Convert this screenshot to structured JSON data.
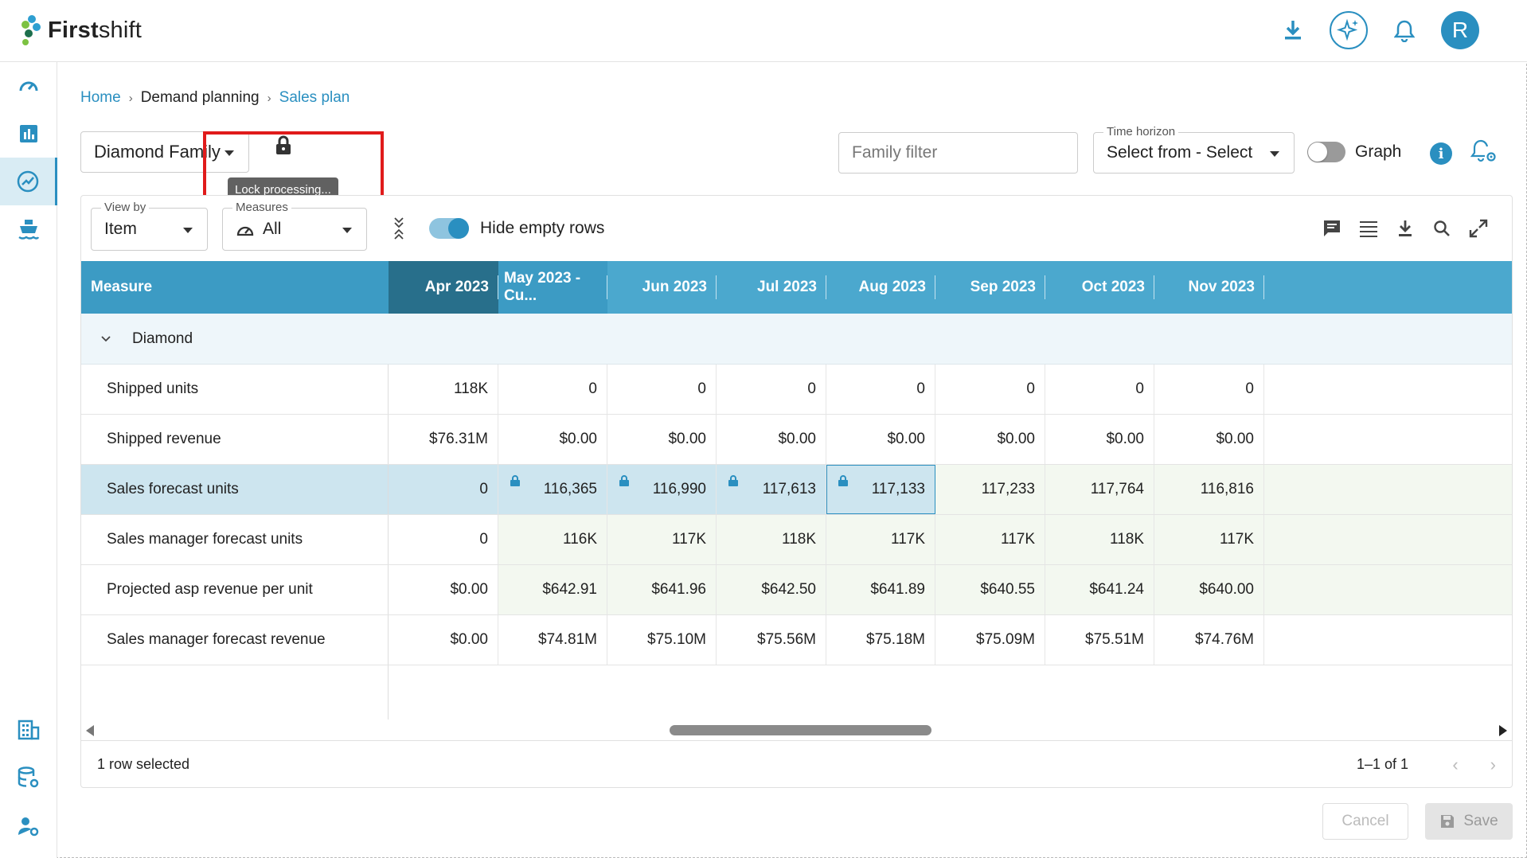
{
  "app": {
    "name_bold": "First",
    "name_light": "shift",
    "user_initial": "R"
  },
  "breadcrumb": {
    "home": "Home",
    "demand": "Demand planning",
    "current": "Sales plan"
  },
  "controls": {
    "family": "Diamond Family",
    "lock_tooltip": "Lock processing...",
    "family_filter_placeholder": "Family filter",
    "time_horizon_label": "Time horizon",
    "time_horizon_value": "Select from - Select",
    "graph_label": "Graph",
    "graph_on": false
  },
  "grid_toolbar": {
    "view_by_label": "View by",
    "view_by_value": "Item",
    "measures_label": "Measures",
    "measures_value": "All",
    "hide_empty_label": "Hide empty rows",
    "hide_empty_on": true
  },
  "table": {
    "measure_header": "Measure",
    "columns": [
      "Apr 2023",
      "May 2023 - Cu...",
      "Jun 2023",
      "Jul 2023",
      "Aug 2023",
      "Sep 2023",
      "Oct 2023",
      "Nov 2023"
    ],
    "group": "Diamond",
    "rows": [
      {
        "label": "Shipped units",
        "values": [
          "118K",
          "0",
          "0",
          "0",
          "0",
          "0",
          "0",
          "0"
        ]
      },
      {
        "label": "Shipped revenue",
        "values": [
          "$76.31M",
          "$0.00",
          "$0.00",
          "$0.00",
          "$0.00",
          "$0.00",
          "$0.00",
          "$0.00"
        ]
      },
      {
        "label": "Sales forecast units",
        "values": [
          "0",
          "116,365",
          "116,990",
          "117,613",
          "117,133",
          "117,233",
          "117,764",
          "116,816"
        ]
      },
      {
        "label": "Sales manager forecast units",
        "values": [
          "0",
          "116K",
          "117K",
          "118K",
          "117K",
          "117K",
          "118K",
          "117K"
        ]
      },
      {
        "label": "Projected asp revenue per unit",
        "values": [
          "$0.00",
          "$642.91",
          "$641.96",
          "$642.50",
          "$641.89",
          "$640.55",
          "$641.24",
          "$640.00"
        ]
      },
      {
        "label": "Sales manager forecast revenue",
        "values": [
          "$0.00",
          "$74.81M",
          "$75.10M",
          "$75.56M",
          "$75.18M",
          "$75.09M",
          "$75.51M",
          "$74.76M"
        ]
      }
    ]
  },
  "footer": {
    "selected": "1 row selected",
    "range": "1–1 of 1"
  },
  "actions": {
    "cancel": "Cancel",
    "save": "Save"
  },
  "colors": {
    "accent": "#2a8fc0",
    "header": "#4ba8ce",
    "header_dark": "#286f8b",
    "selected_row": "#cde5ef",
    "editable_cell": "#f3f8f0",
    "highlight_box": "#e01b1b"
  }
}
